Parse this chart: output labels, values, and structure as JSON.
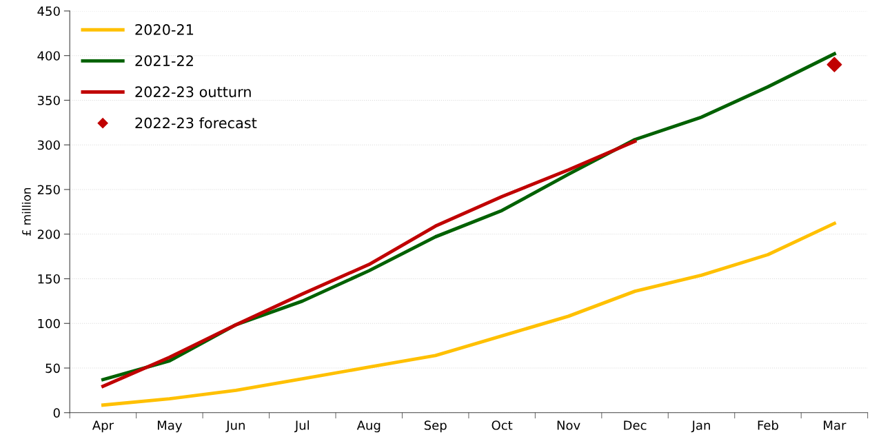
{
  "chart_data": {
    "type": "line",
    "ylabel": "£ million",
    "categories": [
      "Apr",
      "May",
      "Jun",
      "Jul",
      "Aug",
      "Sep",
      "Oct",
      "Nov",
      "Dec",
      "Jan",
      "Feb",
      "Mar"
    ],
    "series": [
      {
        "name": "2020-21",
        "color": "#ffc000",
        "values": [
          8.5,
          15.5,
          25,
          38,
          51,
          64,
          86,
          108,
          136,
          154,
          177,
          212
        ]
      },
      {
        "name": "2021-22",
        "color": "#006100",
        "values": [
          37,
          58,
          98.5,
          125,
          159,
          197,
          226.5,
          267,
          306,
          331,
          365,
          402
        ]
      },
      {
        "name": "2022-23 outturn",
        "color": "#c00000",
        "values": [
          29.5,
          62,
          98.5,
          133,
          166,
          209,
          242,
          272,
          304,
          null,
          null,
          null
        ]
      },
      {
        "name": "2022-23 forecast",
        "color": "#c00000",
        "type": "scatter",
        "marker": "diamond",
        "values": [
          null,
          null,
          null,
          null,
          null,
          null,
          null,
          null,
          null,
          null,
          null,
          390
        ]
      }
    ],
    "ylim": [
      0,
      450
    ],
    "yticks": [
      0,
      50,
      100,
      150,
      200,
      250,
      300,
      350,
      400,
      450
    ],
    "grid": "y",
    "legend": "top left",
    "line_style": "solid"
  }
}
